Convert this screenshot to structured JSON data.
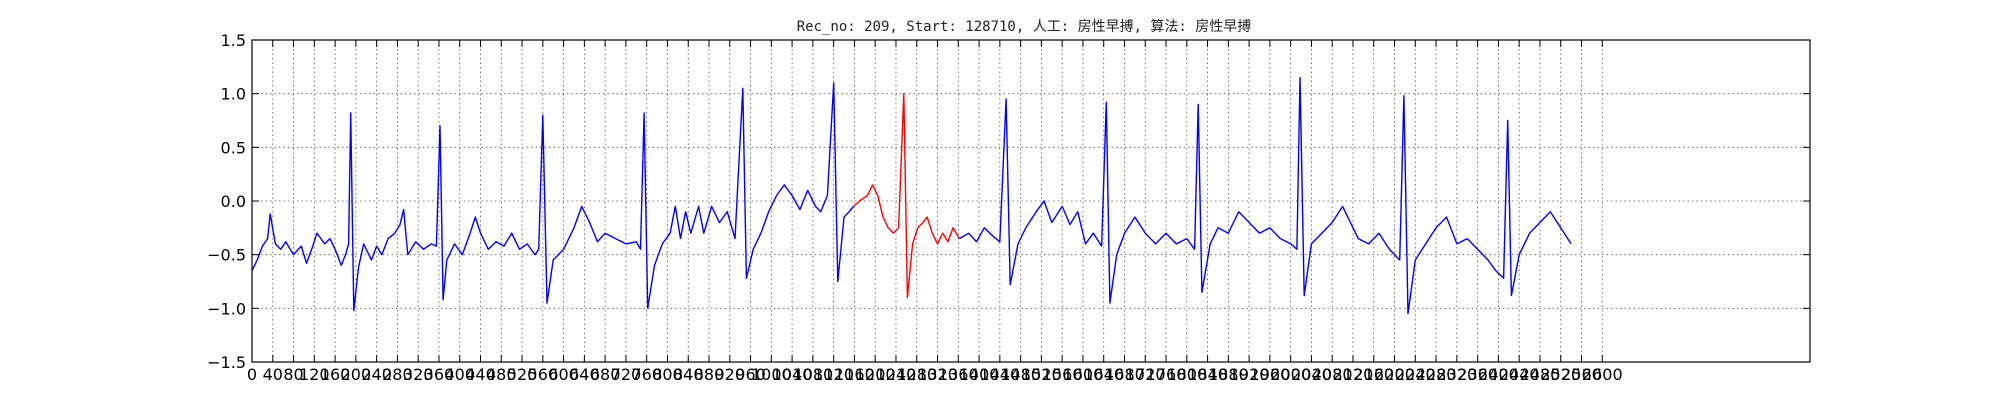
{
  "chart_data": {
    "type": "line",
    "title": "Rec_no: 209, Start: 128710, 人工: 房性早搏, 算法: 房性早搏",
    "xlabel": "",
    "ylabel": "",
    "xlim": [
      0,
      3000
    ],
    "ylim": [
      -1.5,
      1.5
    ],
    "grid": true,
    "x_tick_labels": [
      "0",
      "40",
      "80",
      "120",
      "160",
      "200",
      "240",
      "280",
      "320",
      "360",
      "400",
      "440",
      "480",
      "520",
      "560",
      "600",
      "640",
      "680",
      "720",
      "760",
      "800",
      "840",
      "880",
      "920",
      "960",
      "1000",
      "1040",
      "1080",
      "1120",
      "1160",
      "1200",
      "1240",
      "1280",
      "1320",
      "1360",
      "1400",
      "1440",
      "1480",
      "1520",
      "1560",
      "1600",
      "1640",
      "1680",
      "1720",
      "1760",
      "1800",
      "1840",
      "1880",
      "1920",
      "1960",
      "2000",
      "2040",
      "2080",
      "2120",
      "2160",
      "2200",
      "2240",
      "2280",
      "2320",
      "2360",
      "2400",
      "2440",
      "2480",
      "2520",
      "2560",
      "2600"
    ],
    "y_ticks": [
      "1.5",
      "1.0",
      "0.5",
      "0.0",
      "−0.5",
      "−1.0",
      "−1.5"
    ],
    "series": [
      {
        "color": "#0000ff",
        "points": [
          [
            0,
            -0.65
          ],
          [
            10,
            -0.55
          ],
          [
            20,
            -0.42
          ],
          [
            30,
            -0.35
          ],
          [
            35,
            -0.12
          ],
          [
            45,
            -0.4
          ],
          [
            55,
            -0.45
          ],
          [
            65,
            -0.38
          ],
          [
            80,
            -0.5
          ],
          [
            95,
            -0.42
          ],
          [
            105,
            -0.58
          ],
          [
            115,
            -0.45
          ],
          [
            125,
            -0.3
          ],
          [
            140,
            -0.4
          ],
          [
            150,
            -0.35
          ],
          [
            160,
            -0.45
          ],
          [
            172,
            -0.6
          ],
          [
            180,
            -0.5
          ],
          [
            186,
            -0.4
          ],
          [
            190,
            0.82
          ],
          [
            196,
            -1.02
          ],
          [
            205,
            -0.62
          ],
          [
            215,
            -0.4
          ],
          [
            230,
            -0.55
          ],
          [
            240,
            -0.42
          ],
          [
            250,
            -0.5
          ],
          [
            262,
            -0.35
          ],
          [
            275,
            -0.3
          ],
          [
            285,
            -0.22
          ],
          [
            292,
            -0.08
          ],
          [
            300,
            -0.5
          ],
          [
            315,
            -0.38
          ],
          [
            330,
            -0.45
          ],
          [
            345,
            -0.4
          ],
          [
            355,
            -0.42
          ],
          [
            362,
            0.7
          ],
          [
            368,
            -0.92
          ],
          [
            375,
            -0.55
          ],
          [
            390,
            -0.4
          ],
          [
            405,
            -0.5
          ],
          [
            420,
            -0.3
          ],
          [
            430,
            -0.15
          ],
          [
            440,
            -0.3
          ],
          [
            455,
            -0.45
          ],
          [
            470,
            -0.38
          ],
          [
            485,
            -0.42
          ],
          [
            500,
            -0.3
          ],
          [
            515,
            -0.45
          ],
          [
            530,
            -0.4
          ],
          [
            545,
            -0.5
          ],
          [
            552,
            -0.45
          ],
          [
            560,
            0.8
          ],
          [
            568,
            -0.95
          ],
          [
            580,
            -0.55
          ],
          [
            600,
            -0.45
          ],
          [
            620,
            -0.25
          ],
          [
            635,
            -0.05
          ],
          [
            650,
            -0.2
          ],
          [
            665,
            -0.38
          ],
          [
            680,
            -0.3
          ],
          [
            700,
            -0.35
          ],
          [
            720,
            -0.4
          ],
          [
            740,
            -0.38
          ],
          [
            748,
            -0.45
          ],
          [
            755,
            0.82
          ],
          [
            762,
            -1.0
          ],
          [
            775,
            -0.6
          ],
          [
            790,
            -0.4
          ],
          [
            805,
            -0.3
          ],
          [
            815,
            -0.05
          ],
          [
            825,
            -0.35
          ],
          [
            835,
            -0.1
          ],
          [
            845,
            -0.3
          ],
          [
            860,
            -0.05
          ],
          [
            870,
            -0.3
          ],
          [
            885,
            -0.05
          ],
          [
            900,
            -0.2
          ],
          [
            915,
            -0.1
          ],
          [
            930,
            -0.35
          ],
          [
            945,
            1.05
          ],
          [
            952,
            -0.72
          ],
          [
            965,
            -0.45
          ],
          [
            980,
            -0.3
          ],
          [
            995,
            -0.1
          ],
          [
            1010,
            0.05
          ],
          [
            1025,
            0.15
          ],
          [
            1040,
            0.05
          ],
          [
            1055,
            -0.08
          ],
          [
            1070,
            0.1
          ],
          [
            1085,
            -0.05
          ],
          [
            1095,
            -0.1
          ],
          [
            1108,
            0.05
          ],
          [
            1120,
            1.1
          ],
          [
            1128,
            -0.75
          ],
          [
            1140,
            -0.15
          ],
          [
            1150,
            -0.1
          ],
          [
            1158,
            -0.05
          ]
        ]
      },
      {
        "color": "#ff0000",
        "points": [
          [
            1158,
            -0.05
          ],
          [
            1170,
            0.0
          ],
          [
            1185,
            0.05
          ],
          [
            1195,
            0.15
          ],
          [
            1205,
            0.05
          ],
          [
            1215,
            -0.15
          ],
          [
            1225,
            -0.25
          ],
          [
            1235,
            -0.3
          ],
          [
            1245,
            -0.25
          ],
          [
            1255,
            1.0
          ],
          [
            1262,
            -0.9
          ],
          [
            1272,
            -0.4
          ],
          [
            1282,
            -0.25
          ],
          [
            1292,
            -0.2
          ],
          [
            1300,
            -0.15
          ],
          [
            1310,
            -0.3
          ],
          [
            1320,
            -0.4
          ],
          [
            1330,
            -0.3
          ],
          [
            1340,
            -0.38
          ],
          [
            1350,
            -0.25
          ],
          [
            1362,
            -0.35
          ]
        ]
      },
      {
        "color": "#0000ff",
        "points": [
          [
            1362,
            -0.35
          ],
          [
            1380,
            -0.3
          ],
          [
            1395,
            -0.38
          ],
          [
            1410,
            -0.25
          ],
          [
            1425,
            -0.32
          ],
          [
            1440,
            -0.38
          ],
          [
            1452,
            0.95
          ],
          [
            1460,
            -0.78
          ],
          [
            1475,
            -0.4
          ],
          [
            1490,
            -0.25
          ],
          [
            1510,
            -0.1
          ],
          [
            1525,
            0.0
          ],
          [
            1540,
            -0.2
          ],
          [
            1560,
            -0.05
          ],
          [
            1575,
            -0.22
          ],
          [
            1590,
            -0.1
          ],
          [
            1605,
            -0.4
          ],
          [
            1620,
            -0.3
          ],
          [
            1636,
            -0.42
          ],
          [
            1645,
            0.92
          ],
          [
            1652,
            -0.95
          ],
          [
            1665,
            -0.5
          ],
          [
            1680,
            -0.3
          ],
          [
            1700,
            -0.15
          ],
          [
            1720,
            -0.3
          ],
          [
            1740,
            -0.4
          ],
          [
            1760,
            -0.3
          ],
          [
            1780,
            -0.4
          ],
          [
            1800,
            -0.35
          ],
          [
            1815,
            -0.45
          ],
          [
            1822,
            0.9
          ],
          [
            1829,
            -0.85
          ],
          [
            1845,
            -0.4
          ],
          [
            1860,
            -0.25
          ],
          [
            1880,
            -0.3
          ],
          [
            1900,
            -0.1
          ],
          [
            1920,
            -0.2
          ],
          [
            1940,
            -0.3
          ],
          [
            1960,
            -0.25
          ],
          [
            1980,
            -0.35
          ],
          [
            2000,
            -0.4
          ],
          [
            2012,
            -0.45
          ],
          [
            2018,
            1.15
          ],
          [
            2026,
            -0.88
          ],
          [
            2040,
            -0.4
          ],
          [
            2060,
            -0.3
          ],
          [
            2080,
            -0.2
          ],
          [
            2100,
            -0.05
          ],
          [
            2115,
            -0.2
          ],
          [
            2130,
            -0.35
          ],
          [
            2150,
            -0.4
          ],
          [
            2170,
            -0.3
          ],
          [
            2190,
            -0.45
          ],
          [
            2210,
            -0.55
          ],
          [
            2218,
            0.98
          ],
          [
            2226,
            -1.05
          ],
          [
            2240,
            -0.55
          ],
          [
            2260,
            -0.4
          ],
          [
            2280,
            -0.25
          ],
          [
            2300,
            -0.15
          ],
          [
            2320,
            -0.4
          ],
          [
            2340,
            -0.35
          ],
          [
            2360,
            -0.45
          ],
          [
            2380,
            -0.55
          ],
          [
            2395,
            -0.65
          ],
          [
            2410,
            -0.72
          ],
          [
            2418,
            0.75
          ],
          [
            2425,
            -0.88
          ],
          [
            2440,
            -0.5
          ],
          [
            2460,
            -0.3
          ],
          [
            2480,
            -0.2
          ],
          [
            2500,
            -0.1
          ],
          [
            2520,
            -0.25
          ],
          [
            2540,
            -0.4
          ]
        ]
      }
    ]
  }
}
